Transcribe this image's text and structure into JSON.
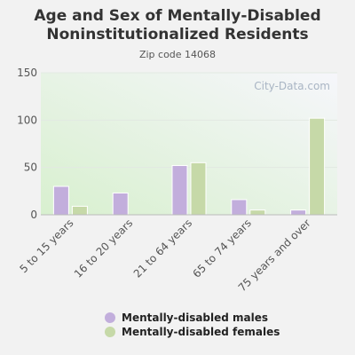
{
  "header": {
    "title": "Age and Sex of Mentally-Disabled Noninstitutionalized Residents",
    "subtitle": "Zip code 14068"
  },
  "watermark": "City-Data.com",
  "colors": {
    "males": "#c2aedc",
    "females": "#c6d9a8"
  },
  "chart_data": {
    "type": "bar",
    "title": "Age and Sex of Mentally-Disabled Noninstitutionalized Residents",
    "subtitle": "Zip code 14068",
    "categories": [
      "5 to 15 years",
      "16 to 20 years",
      "21 to 64 years",
      "65 to 74 years",
      "75 years and over"
    ],
    "series": [
      {
        "name": "Mentally-disabled males",
        "values": [
          30,
          23,
          52,
          16,
          5
        ]
      },
      {
        "name": "Mentally-disabled females",
        "values": [
          9,
          0,
          55,
          5,
          102
        ]
      }
    ],
    "yticks": [
      0,
      50,
      100,
      150
    ],
    "ylim": [
      0,
      150
    ],
    "grid": true,
    "legend": "bottom"
  }
}
